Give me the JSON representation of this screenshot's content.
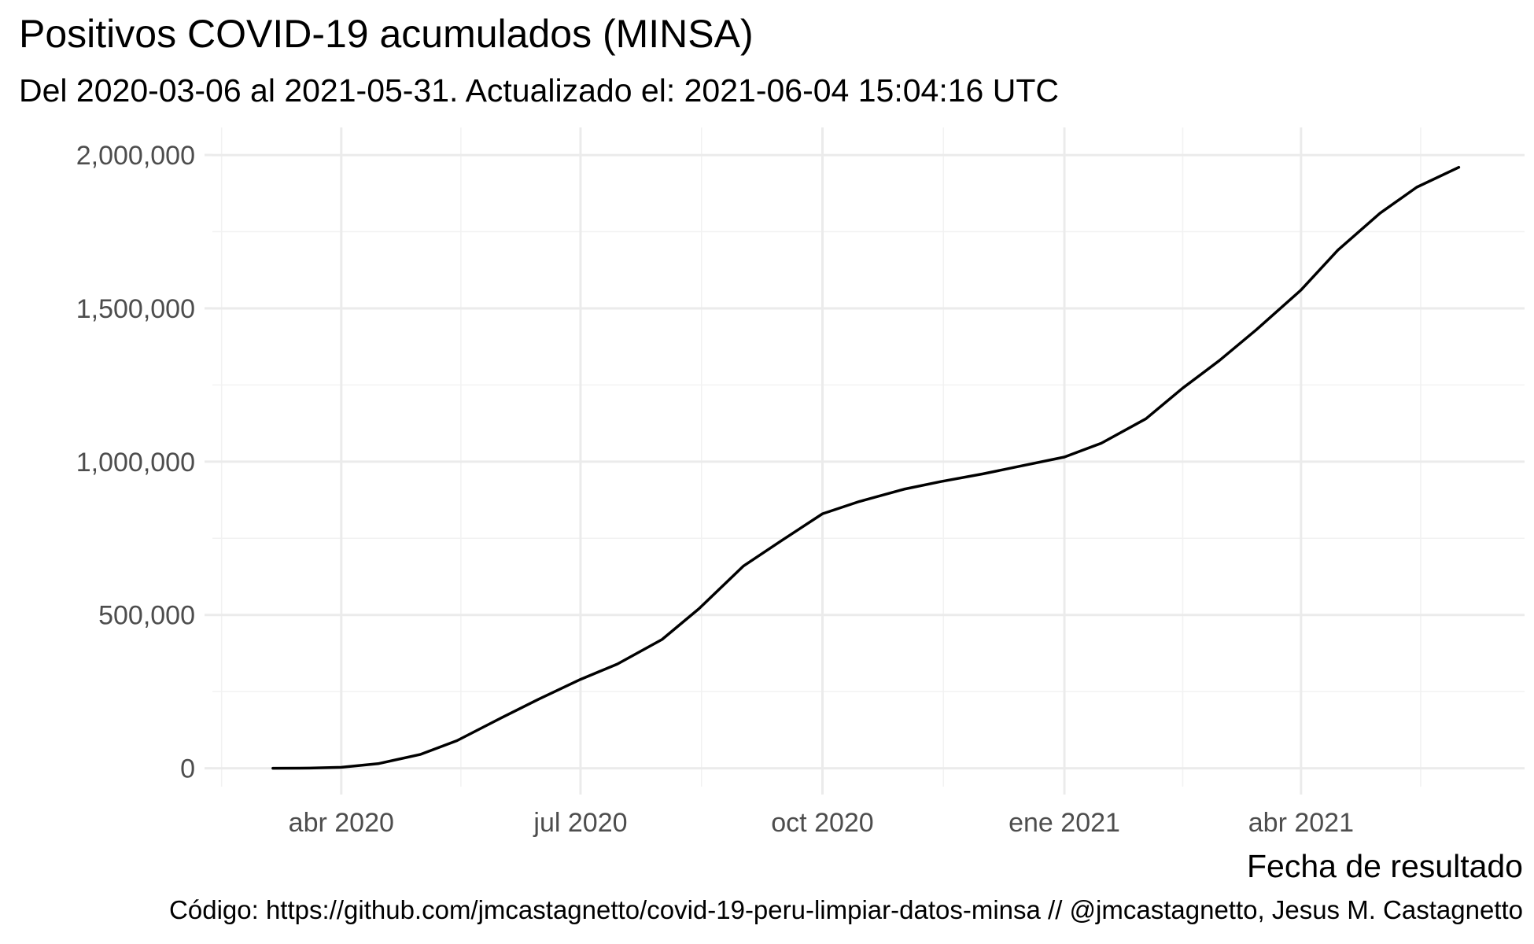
{
  "chart_data": {
    "type": "line",
    "title": "Positivos COVID-19 acumulados (MINSA)",
    "subtitle": "Del 2020-03-06 al 2021-05-31. Actualizado el: 2021-06-04 15:04:16 UTC",
    "xlabel": "Fecha de resultado",
    "ylabel": "",
    "caption": "Código: https://github.com/jmcastagnetto/covid-19-peru-limpiar-datos-minsa // @jmcastagnetto, Jesus M. Castagnetto",
    "x_tick_labels": [
      "abr 2020",
      "jul 2020",
      "oct 2020",
      "ene 2021",
      "abr 2021"
    ],
    "x_tick_dates": [
      "2020-04-01",
      "2020-07-01",
      "2020-10-01",
      "2021-01-01",
      "2021-04-01"
    ],
    "y_tick_labels": [
      "0",
      "500,000",
      "1,000,000",
      "1,500,000",
      "2,000,000"
    ],
    "y_tick_values": [
      0,
      500000,
      1000000,
      1500000,
      2000000
    ],
    "xlim": [
      "2020-02-12",
      "2021-06-25"
    ],
    "ylim": [
      -60000,
      2090000
    ],
    "grid": true,
    "legend": "none",
    "line_color": "#000000",
    "series": [
      {
        "x": [
          "2020-03-06",
          "2020-03-20",
          "2020-04-01",
          "2020-04-15",
          "2020-05-01",
          "2020-05-15",
          "2020-06-01",
          "2020-06-15",
          "2020-07-01",
          "2020-07-15",
          "2020-08-01",
          "2020-08-15",
          "2020-09-01",
          "2020-09-15",
          "2020-10-01",
          "2020-10-15",
          "2020-11-01",
          "2020-11-15",
          "2020-12-01",
          "2020-12-15",
          "2021-01-01",
          "2021-01-15",
          "2021-02-01",
          "2021-02-15",
          "2021-03-01",
          "2021-03-15",
          "2021-04-01",
          "2021-04-15",
          "2021-05-01",
          "2021-05-15",
          "2021-05-31"
        ],
        "values": [
          0,
          500,
          3000,
          15000,
          45000,
          90000,
          165000,
          225000,
          290000,
          340000,
          420000,
          520000,
          660000,
          740000,
          830000,
          870000,
          910000,
          935000,
          960000,
          985000,
          1015000,
          1060000,
          1140000,
          1240000,
          1330000,
          1430000,
          1560000,
          1690000,
          1810000,
          1895000,
          1960000
        ]
      }
    ]
  }
}
